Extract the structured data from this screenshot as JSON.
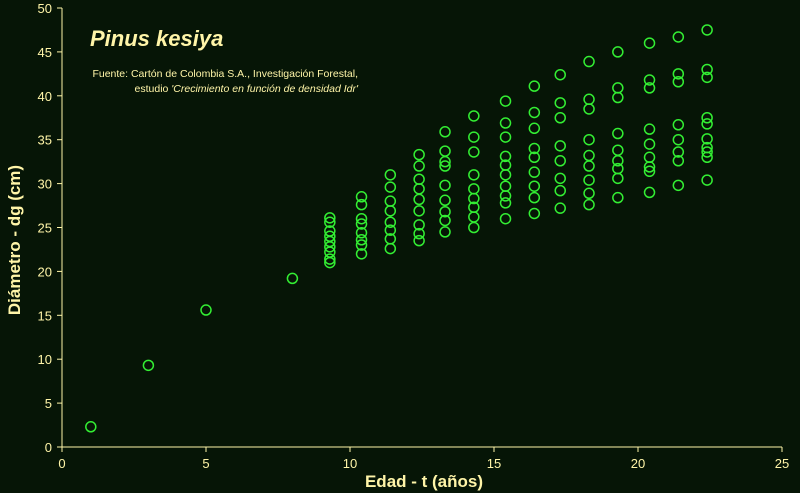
{
  "chart_data": {
    "type": "scatter",
    "title": "Pinus kesiya",
    "source_line1": "Fuente: Cartón de Colombia S.A., Investigación Forestal,",
    "source_line2_prefix": "estudio ",
    "source_line2_italic": "'Crecimiento en función de densidad Idr'",
    "xlabel": "Edad - t  (años)",
    "ylabel": "Diámetro - dg  (cm)",
    "xlim": [
      0,
      25
    ],
    "ylim": [
      0,
      50
    ],
    "xticks": [
      "0",
      "5",
      "10",
      "15",
      "20",
      "25"
    ],
    "yticks": [
      "0",
      "5",
      "10",
      "15",
      "20",
      "25",
      "30",
      "35",
      "40",
      "45",
      "50"
    ],
    "grid": false,
    "marker_color": "#33ee33",
    "axis_color": "#fff5a8",
    "text_color": "#fff5a8",
    "background": "#061506",
    "points": [
      {
        "x": 1,
        "y": 2.3
      },
      {
        "x": 3,
        "y": 9.3
      },
      {
        "x": 5,
        "y": 15.6
      },
      {
        "x": 8,
        "y": 19.2
      },
      {
        "x": 9.3,
        "y": 26.1
      },
      {
        "x": 9.3,
        "y": 25.6
      },
      {
        "x": 9.3,
        "y": 24.6
      },
      {
        "x": 9.3,
        "y": 24.0
      },
      {
        "x": 9.3,
        "y": 23.4
      },
      {
        "x": 9.3,
        "y": 22.8
      },
      {
        "x": 9.3,
        "y": 22.2
      },
      {
        "x": 9.3,
        "y": 21.4
      },
      {
        "x": 9.3,
        "y": 21.0
      },
      {
        "x": 10.4,
        "y": 28.5
      },
      {
        "x": 10.4,
        "y": 27.6
      },
      {
        "x": 10.4,
        "y": 26.0
      },
      {
        "x": 10.4,
        "y": 25.4
      },
      {
        "x": 10.4,
        "y": 24.4
      },
      {
        "x": 10.4,
        "y": 23.6
      },
      {
        "x": 10.4,
        "y": 23.0
      },
      {
        "x": 10.4,
        "y": 22.0
      },
      {
        "x": 11.4,
        "y": 31.0
      },
      {
        "x": 11.4,
        "y": 29.6
      },
      {
        "x": 11.4,
        "y": 28.0
      },
      {
        "x": 11.4,
        "y": 26.9
      },
      {
        "x": 11.4,
        "y": 25.6
      },
      {
        "x": 11.4,
        "y": 24.7
      },
      {
        "x": 11.4,
        "y": 23.7
      },
      {
        "x": 11.4,
        "y": 22.6
      },
      {
        "x": 12.4,
        "y": 33.3
      },
      {
        "x": 12.4,
        "y": 32.0
      },
      {
        "x": 12.4,
        "y": 30.5
      },
      {
        "x": 12.4,
        "y": 29.4
      },
      {
        "x": 12.4,
        "y": 28.2
      },
      {
        "x": 12.4,
        "y": 26.9
      },
      {
        "x": 12.4,
        "y": 25.3
      },
      {
        "x": 12.4,
        "y": 24.3
      },
      {
        "x": 12.4,
        "y": 23.5
      },
      {
        "x": 13.3,
        "y": 35.9
      },
      {
        "x": 13.3,
        "y": 33.7
      },
      {
        "x": 13.3,
        "y": 32.5
      },
      {
        "x": 13.3,
        "y": 32.0
      },
      {
        "x": 13.3,
        "y": 29.8
      },
      {
        "x": 13.3,
        "y": 28.1
      },
      {
        "x": 13.3,
        "y": 26.8
      },
      {
        "x": 13.3,
        "y": 25.8
      },
      {
        "x": 13.3,
        "y": 24.5
      },
      {
        "x": 14.3,
        "y": 37.7
      },
      {
        "x": 14.3,
        "y": 35.3
      },
      {
        "x": 14.3,
        "y": 33.6
      },
      {
        "x": 14.3,
        "y": 31.0
      },
      {
        "x": 14.3,
        "y": 29.4
      },
      {
        "x": 14.3,
        "y": 28.3
      },
      {
        "x": 14.3,
        "y": 27.3
      },
      {
        "x": 14.3,
        "y": 26.2
      },
      {
        "x": 14.3,
        "y": 25.0
      },
      {
        "x": 15.4,
        "y": 39.4
      },
      {
        "x": 15.4,
        "y": 36.9
      },
      {
        "x": 15.4,
        "y": 35.3
      },
      {
        "x": 15.4,
        "y": 33.1
      },
      {
        "x": 15.4,
        "y": 32.1
      },
      {
        "x": 15.4,
        "y": 31.0
      },
      {
        "x": 15.4,
        "y": 29.7
      },
      {
        "x": 15.4,
        "y": 28.6
      },
      {
        "x": 15.4,
        "y": 27.8
      },
      {
        "x": 15.4,
        "y": 26.0
      },
      {
        "x": 16.4,
        "y": 41.1
      },
      {
        "x": 16.4,
        "y": 38.1
      },
      {
        "x": 16.4,
        "y": 36.3
      },
      {
        "x": 16.4,
        "y": 34.0
      },
      {
        "x": 16.4,
        "y": 33.0
      },
      {
        "x": 16.4,
        "y": 31.3
      },
      {
        "x": 16.4,
        "y": 29.7
      },
      {
        "x": 16.4,
        "y": 28.4
      },
      {
        "x": 16.4,
        "y": 26.6
      },
      {
        "x": 17.3,
        "y": 42.4
      },
      {
        "x": 17.3,
        "y": 39.2
      },
      {
        "x": 17.3,
        "y": 37.5
      },
      {
        "x": 17.3,
        "y": 34.3
      },
      {
        "x": 17.3,
        "y": 32.6
      },
      {
        "x": 17.3,
        "y": 30.6
      },
      {
        "x": 17.3,
        "y": 29.2
      },
      {
        "x": 17.3,
        "y": 27.2
      },
      {
        "x": 18.3,
        "y": 43.9
      },
      {
        "x": 18.3,
        "y": 39.6
      },
      {
        "x": 18.3,
        "y": 38.5
      },
      {
        "x": 18.3,
        "y": 35.0
      },
      {
        "x": 18.3,
        "y": 33.2
      },
      {
        "x": 18.3,
        "y": 32.0
      },
      {
        "x": 18.3,
        "y": 30.4
      },
      {
        "x": 18.3,
        "y": 28.9
      },
      {
        "x": 18.3,
        "y": 27.6
      },
      {
        "x": 19.3,
        "y": 45.0
      },
      {
        "x": 19.3,
        "y": 40.9
      },
      {
        "x": 19.3,
        "y": 39.8
      },
      {
        "x": 19.3,
        "y": 35.7
      },
      {
        "x": 19.3,
        "y": 33.8
      },
      {
        "x": 19.3,
        "y": 32.6
      },
      {
        "x": 19.3,
        "y": 31.7
      },
      {
        "x": 19.3,
        "y": 30.6
      },
      {
        "x": 19.3,
        "y": 28.4
      },
      {
        "x": 20.4,
        "y": 46.0
      },
      {
        "x": 20.4,
        "y": 41.8
      },
      {
        "x": 20.4,
        "y": 40.9
      },
      {
        "x": 20.4,
        "y": 36.2
      },
      {
        "x": 20.4,
        "y": 34.5
      },
      {
        "x": 20.4,
        "y": 33.0
      },
      {
        "x": 20.4,
        "y": 31.9
      },
      {
        "x": 20.4,
        "y": 31.4
      },
      {
        "x": 20.4,
        "y": 29.0
      },
      {
        "x": 21.4,
        "y": 46.7
      },
      {
        "x": 21.4,
        "y": 42.5
      },
      {
        "x": 21.4,
        "y": 41.6
      },
      {
        "x": 21.4,
        "y": 36.7
      },
      {
        "x": 21.4,
        "y": 35.0
      },
      {
        "x": 21.4,
        "y": 33.6
      },
      {
        "x": 21.4,
        "y": 32.6
      },
      {
        "x": 21.4,
        "y": 29.8
      },
      {
        "x": 22.4,
        "y": 47.5
      },
      {
        "x": 22.4,
        "y": 43.0
      },
      {
        "x": 22.4,
        "y": 42.1
      },
      {
        "x": 22.4,
        "y": 37.5
      },
      {
        "x": 22.4,
        "y": 36.8
      },
      {
        "x": 22.4,
        "y": 35.1
      },
      {
        "x": 22.4,
        "y": 34.1
      },
      {
        "x": 22.4,
        "y": 33.6
      },
      {
        "x": 22.4,
        "y": 33.0
      },
      {
        "x": 22.4,
        "y": 30.4
      }
    ]
  }
}
